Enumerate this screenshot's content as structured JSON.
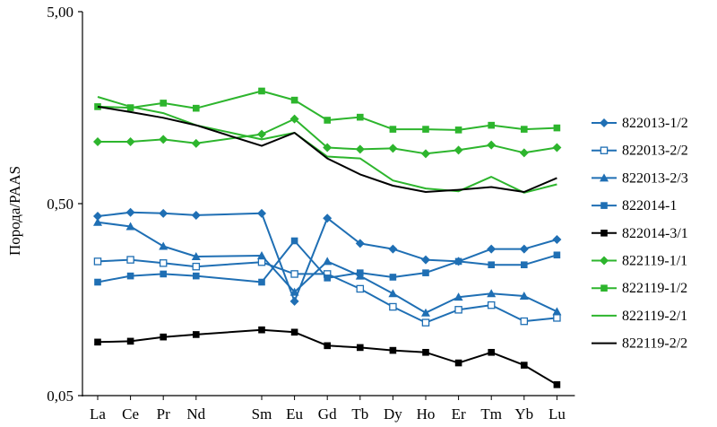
{
  "chart_data": {
    "type": "line",
    "title": "",
    "xlabel": "",
    "ylabel": "Порода/PAAS",
    "yscale": "log",
    "ylim": [
      0.05,
      5.0
    ],
    "yticks": [
      {
        "value": 5.0,
        "label": "5,00"
      },
      {
        "value": 0.5,
        "label": "0,50"
      },
      {
        "value": 0.05,
        "label": "0,05"
      }
    ],
    "grid": false,
    "legend_position": "right",
    "categories": [
      "La",
      "Ce",
      "Pr",
      "Nd",
      "Sm",
      "Eu",
      "Gd",
      "Tb",
      "Dy",
      "Ho",
      "Er",
      "Tm",
      "Yb",
      "Lu"
    ],
    "category_slots": [
      0,
      1,
      2,
      3,
      5,
      6,
      7,
      8,
      9,
      10,
      11,
      12,
      13,
      14
    ],
    "series": [
      {
        "name": "822013-1/2",
        "color": "#1f6fb4",
        "marker": "diamond",
        "values": [
          0.43,
          0.45,
          0.445,
          0.435,
          0.445,
          0.155,
          0.42,
          0.31,
          0.29,
          0.255,
          0.25,
          0.29,
          0.29,
          0.325
        ]
      },
      {
        "name": "822013-2/2",
        "color": "#1f6fb4",
        "marker": "square-open",
        "values": [
          0.25,
          0.255,
          0.245,
          0.235,
          0.248,
          0.215,
          0.215,
          0.18,
          0.145,
          0.12,
          0.14,
          0.148,
          0.122,
          0.127
        ]
      },
      {
        "name": "822013-2/3",
        "color": "#1f6fb4",
        "marker": "triangle",
        "values": [
          0.4,
          0.38,
          0.3,
          0.265,
          0.268,
          0.173,
          0.25,
          0.21,
          0.17,
          0.135,
          0.163,
          0.17,
          0.165,
          0.137
        ]
      },
      {
        "name": "822014-1",
        "color": "#1f6fb4",
        "marker": "square",
        "values": [
          0.195,
          0.21,
          0.215,
          0.21,
          0.195,
          0.32,
          0.205,
          0.218,
          0.207,
          0.218,
          0.25,
          0.24,
          0.24,
          0.27
        ]
      },
      {
        "name": "822014-3/1",
        "color": "#000000",
        "marker": "square",
        "values": [
          0.095,
          0.096,
          0.101,
          0.104,
          0.11,
          0.107,
          0.091,
          0.089,
          0.086,
          0.084,
          0.074,
          0.084,
          0.072,
          0.057
        ]
      },
      {
        "name": "822119-1/1",
        "color": "#2db52d",
        "marker": "diamond",
        "values": [
          1.05,
          1.05,
          1.08,
          1.03,
          1.15,
          1.38,
          0.98,
          0.96,
          0.97,
          0.91,
          0.95,
          1.01,
          0.92,
          0.98
        ]
      },
      {
        "name": "822119-1/2",
        "color": "#2db52d",
        "marker": "square",
        "values": [
          1.6,
          1.58,
          1.67,
          1.57,
          1.93,
          1.73,
          1.36,
          1.41,
          1.22,
          1.22,
          1.21,
          1.28,
          1.22,
          1.24
        ]
      },
      {
        "name": "822119-2/1",
        "color": "#2db52d",
        "marker": "none",
        "values": [
          1.8,
          1.6,
          1.48,
          1.28,
          1.08,
          1.17,
          0.88,
          0.86,
          0.66,
          0.6,
          0.58,
          0.69,
          0.57,
          0.63
        ]
      },
      {
        "name": "822119-2/2",
        "color": "#000000",
        "marker": "none",
        "values": [
          1.6,
          1.5,
          1.4,
          1.28,
          1.0,
          1.17,
          0.86,
          0.71,
          0.62,
          0.575,
          0.59,
          0.61,
          0.575,
          0.68
        ]
      }
    ]
  }
}
